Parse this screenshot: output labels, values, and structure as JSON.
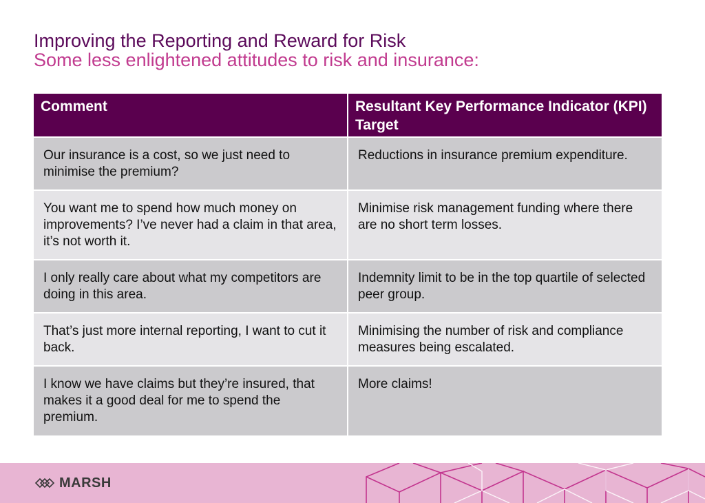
{
  "header": {
    "title": "Improving the Reporting and Reward for Risk",
    "subtitle": "Some less enlightened attitudes to risk and insurance:"
  },
  "table": {
    "columns": [
      "Comment",
      "Resultant Key Performance Indicator (KPI) Target"
    ],
    "rows": [
      [
        "Our insurance is a cost, so we just need to minimise the premium?",
        "Reductions in insurance premium expenditure."
      ],
      [
        "You want me to spend how much money on improvements? I’ve never had a claim in that area, it’s not worth it.",
        "Minimise risk management funding where there are no short term losses."
      ],
      [
        "I only really care about what my competitors are doing in this area.",
        "Indemnity limit to be in the top quartile of selected peer group."
      ],
      [
        "That’s just more internal reporting, I want to cut it back.",
        "Minimising the number of risk and compliance measures being escalated."
      ],
      [
        "I know we have claims but they’re insured, that makes it a good deal for me to spend the premium.",
        "More claims!"
      ]
    ]
  },
  "footer": {
    "logo_text": "MARSH",
    "logo_icon": "marsh-knot-icon",
    "band_color": "#e8b5d3",
    "pattern_color": "#c2348e"
  },
  "colors": {
    "title": "#5b0a5a",
    "subtitle": "#c13b8f",
    "table_header": "#5a004e",
    "row_dark": "#cbcacd",
    "row_light": "#e5e4e7"
  }
}
